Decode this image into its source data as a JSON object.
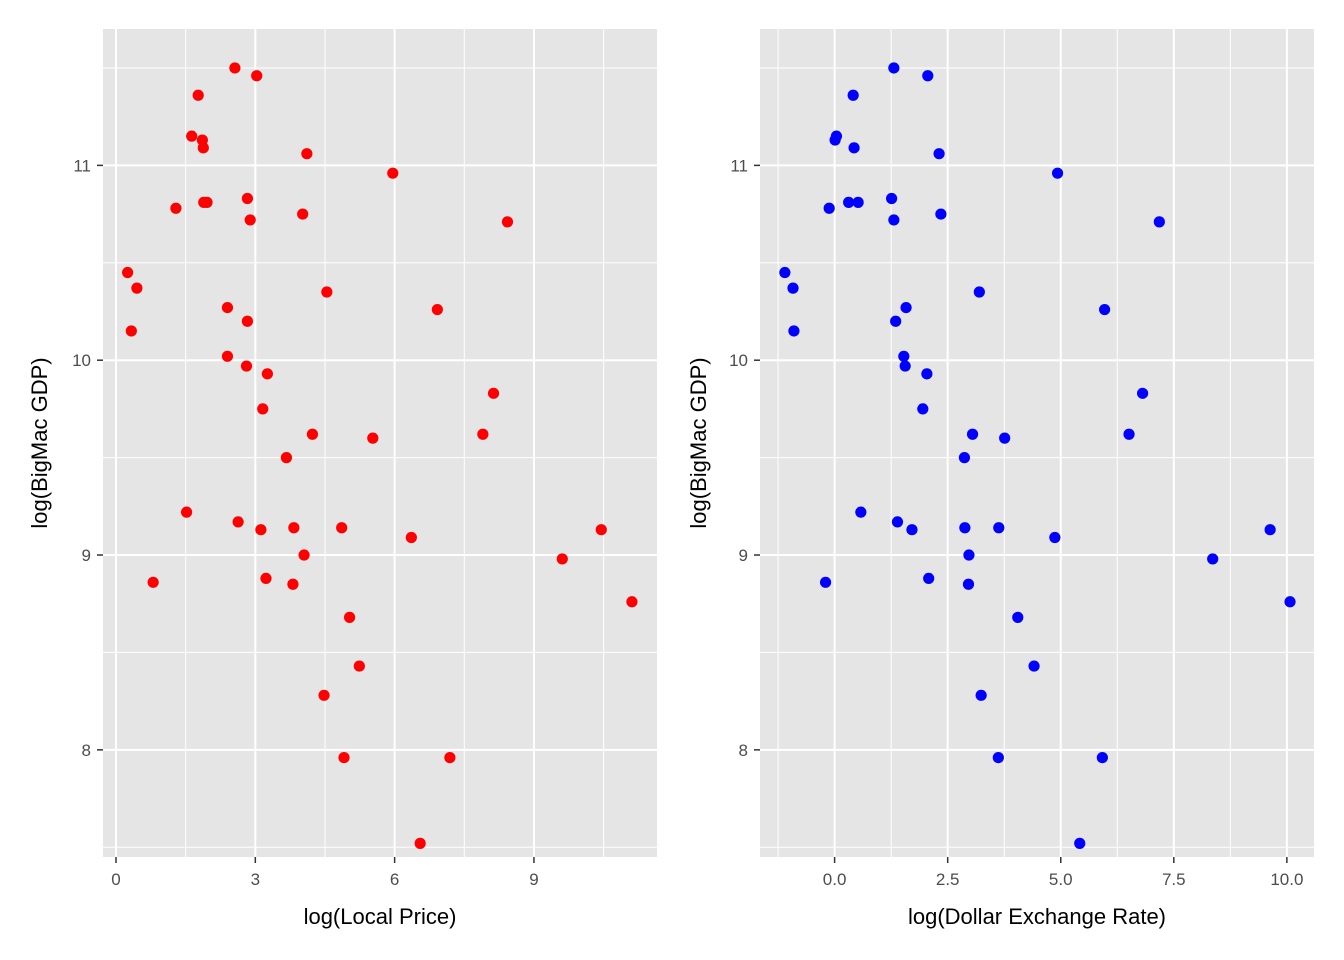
{
  "chart_data": [
    {
      "type": "scatter",
      "xlabel": "log(Local Price)",
      "ylabel": "log(BigMac GDP)",
      "point_color": "#ff0000",
      "xlim": [
        -0.28,
        11.65
      ],
      "ylim": [
        7.45,
        11.7
      ],
      "x_ticks": [
        0,
        3,
        6,
        9
      ],
      "x_tick_labels": [
        "0",
        "3",
        "6",
        "9"
      ],
      "y_ticks": [
        8,
        9,
        10,
        11
      ],
      "y_tick_labels": [
        "8",
        "9",
        "10",
        "11"
      ],
      "grid": true,
      "background": "#e5e5e5",
      "points": [
        {
          "x": 2.56,
          "y": 11.5
        },
        {
          "x": 3.03,
          "y": 11.46
        },
        {
          "x": 1.77,
          "y": 11.36
        },
        {
          "x": 1.63,
          "y": 11.15
        },
        {
          "x": 1.86,
          "y": 11.13
        },
        {
          "x": 1.88,
          "y": 11.09
        },
        {
          "x": 4.11,
          "y": 11.06
        },
        {
          "x": 5.96,
          "y": 10.96
        },
        {
          "x": 2.83,
          "y": 10.83
        },
        {
          "x": 1.89,
          "y": 10.81
        },
        {
          "x": 1.96,
          "y": 10.81
        },
        {
          "x": 1.29,
          "y": 10.78
        },
        {
          "x": 4.02,
          "y": 10.75
        },
        {
          "x": 2.89,
          "y": 10.72
        },
        {
          "x": 8.43,
          "y": 10.71
        },
        {
          "x": 0.25,
          "y": 10.45
        },
        {
          "x": 0.45,
          "y": 10.37
        },
        {
          "x": 4.54,
          "y": 10.35
        },
        {
          "x": 2.4,
          "y": 10.27
        },
        {
          "x": 6.92,
          "y": 10.26
        },
        {
          "x": 2.83,
          "y": 10.2
        },
        {
          "x": 0.33,
          "y": 10.15
        },
        {
          "x": 2.4,
          "y": 10.02
        },
        {
          "x": 2.81,
          "y": 9.97
        },
        {
          "x": 3.26,
          "y": 9.93
        },
        {
          "x": 8.13,
          "y": 9.83
        },
        {
          "x": 3.16,
          "y": 9.75
        },
        {
          "x": 4.23,
          "y": 9.62
        },
        {
          "x": 7.9,
          "y": 9.62
        },
        {
          "x": 5.53,
          "y": 9.6
        },
        {
          "x": 3.67,
          "y": 9.5
        },
        {
          "x": 1.52,
          "y": 9.22
        },
        {
          "x": 2.63,
          "y": 9.17
        },
        {
          "x": 3.12,
          "y": 9.13
        },
        {
          "x": 3.83,
          "y": 9.14
        },
        {
          "x": 4.86,
          "y": 9.14
        },
        {
          "x": 10.45,
          "y": 9.13
        },
        {
          "x": 6.36,
          "y": 9.09
        },
        {
          "x": 4.05,
          "y": 9.0
        },
        {
          "x": 9.61,
          "y": 8.98
        },
        {
          "x": 3.23,
          "y": 8.88
        },
        {
          "x": 0.8,
          "y": 8.86
        },
        {
          "x": 3.81,
          "y": 8.85
        },
        {
          "x": 11.11,
          "y": 8.76
        },
        {
          "x": 5.03,
          "y": 8.68
        },
        {
          "x": 5.24,
          "y": 8.43
        },
        {
          "x": 4.48,
          "y": 8.28
        },
        {
          "x": 7.19,
          "y": 7.96
        },
        {
          "x": 4.91,
          "y": 7.96
        },
        {
          "x": 6.55,
          "y": 7.52
        }
      ]
    },
    {
      "type": "scatter",
      "xlabel": "log(Dollar Exchange Rate)",
      "ylabel": "log(BigMac GDP)",
      "point_color": "#0000ff",
      "xlim": [
        -1.65,
        10.6
      ],
      "ylim": [
        7.45,
        11.7
      ],
      "x_ticks": [
        0,
        2.5,
        5,
        7.5,
        10
      ],
      "x_tick_labels": [
        "0.0",
        "2.5",
        "5.0",
        "7.5",
        "10.0"
      ],
      "y_ticks": [
        8,
        9,
        10,
        11
      ],
      "y_tick_labels": [
        "8",
        "9",
        "10",
        "11"
      ],
      "grid": true,
      "background": "#e5e5e5",
      "points": [
        {
          "x": 1.31,
          "y": 11.5
        },
        {
          "x": 2.06,
          "y": 11.46
        },
        {
          "x": 0.41,
          "y": 11.36
        },
        {
          "x": 0.04,
          "y": 11.15
        },
        {
          "x": 0.01,
          "y": 11.13
        },
        {
          "x": 0.43,
          "y": 11.09
        },
        {
          "x": 2.31,
          "y": 11.06
        },
        {
          "x": 4.93,
          "y": 10.96
        },
        {
          "x": 1.26,
          "y": 10.83
        },
        {
          "x": 0.31,
          "y": 10.81
        },
        {
          "x": 0.52,
          "y": 10.81
        },
        {
          "x": -0.12,
          "y": 10.78
        },
        {
          "x": 2.35,
          "y": 10.75
        },
        {
          "x": 1.31,
          "y": 10.72
        },
        {
          "x": 7.18,
          "y": 10.71
        },
        {
          "x": -1.1,
          "y": 10.45
        },
        {
          "x": -0.92,
          "y": 10.37
        },
        {
          "x": 3.2,
          "y": 10.35
        },
        {
          "x": 1.58,
          "y": 10.27
        },
        {
          "x": 5.97,
          "y": 10.26
        },
        {
          "x": 1.35,
          "y": 10.2
        },
        {
          "x": -0.9,
          "y": 10.15
        },
        {
          "x": 1.53,
          "y": 10.02
        },
        {
          "x": 1.56,
          "y": 9.97
        },
        {
          "x": 2.04,
          "y": 9.93
        },
        {
          "x": 6.81,
          "y": 9.83
        },
        {
          "x": 1.95,
          "y": 9.75
        },
        {
          "x": 3.05,
          "y": 9.62
        },
        {
          "x": 6.51,
          "y": 9.62
        },
        {
          "x": 3.76,
          "y": 9.6
        },
        {
          "x": 2.87,
          "y": 9.5
        },
        {
          "x": 0.58,
          "y": 9.22
        },
        {
          "x": 1.39,
          "y": 9.17
        },
        {
          "x": 1.71,
          "y": 9.13
        },
        {
          "x": 2.88,
          "y": 9.14
        },
        {
          "x": 3.63,
          "y": 9.14
        },
        {
          "x": 9.63,
          "y": 9.13
        },
        {
          "x": 4.87,
          "y": 9.09
        },
        {
          "x": 2.97,
          "y": 9.0
        },
        {
          "x": 8.36,
          "y": 8.98
        },
        {
          "x": 2.08,
          "y": 8.88
        },
        {
          "x": -0.2,
          "y": 8.86
        },
        {
          "x": 2.96,
          "y": 8.85
        },
        {
          "x": 10.07,
          "y": 8.76
        },
        {
          "x": 4.05,
          "y": 8.68
        },
        {
          "x": 4.41,
          "y": 8.43
        },
        {
          "x": 3.24,
          "y": 8.28
        },
        {
          "x": 5.92,
          "y": 7.96
        },
        {
          "x": 3.62,
          "y": 7.96
        },
        {
          "x": 5.42,
          "y": 7.52
        }
      ]
    }
  ]
}
